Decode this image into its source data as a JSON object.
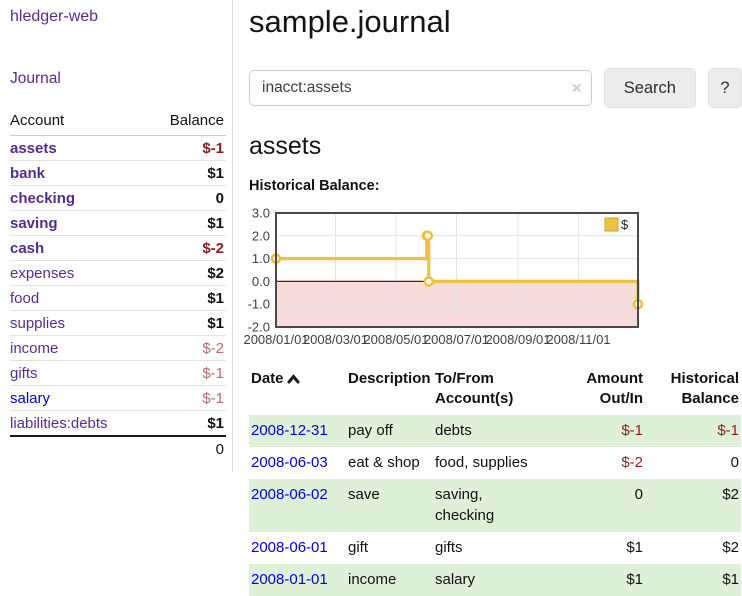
{
  "app": {
    "brand": "hledger-web"
  },
  "sidebar": {
    "journal_link": "Journal",
    "accounts_table": {
      "headers": {
        "account": "Account",
        "balance": "Balance"
      },
      "rows": [
        {
          "name": "assets",
          "indent": 1,
          "bold": true,
          "unvisited": false,
          "balance": "$-1",
          "balance_style": "neg-strong"
        },
        {
          "name": "bank",
          "indent": 2,
          "bold": true,
          "unvisited": false,
          "balance": "$1",
          "balance_style": "normal"
        },
        {
          "name": "checking",
          "indent": 3,
          "bold": true,
          "unvisited": false,
          "balance": "0",
          "balance_style": "normal"
        },
        {
          "name": "saving",
          "indent": 3,
          "bold": true,
          "unvisited": false,
          "balance": "$1",
          "balance_style": "normal"
        },
        {
          "name": "cash",
          "indent": 2,
          "bold": true,
          "unvisited": false,
          "balance": "$-2",
          "balance_style": "neg-strong"
        },
        {
          "name": "expenses",
          "indent": 1,
          "bold": false,
          "unvisited": false,
          "balance": "$2",
          "balance_style": "normal"
        },
        {
          "name": "food",
          "indent": 2,
          "bold": false,
          "unvisited": false,
          "balance": "$1",
          "balance_style": "normal"
        },
        {
          "name": "supplies",
          "indent": 2,
          "bold": false,
          "unvisited": false,
          "balance": "$1",
          "balance_style": "normal"
        },
        {
          "name": "income",
          "indent": 1,
          "bold": false,
          "unvisited": false,
          "balance": "$-2",
          "balance_style": "neg-soft"
        },
        {
          "name": "gifts",
          "indent": 2,
          "bold": false,
          "unvisited": false,
          "balance": "$-1",
          "balance_style": "neg-soft"
        },
        {
          "name": "salary",
          "indent": 2,
          "bold": false,
          "unvisited": true,
          "balance": "$-1",
          "balance_style": "neg-soft"
        },
        {
          "name": "liabilities:debts",
          "indent": 1,
          "bold": false,
          "unvisited": false,
          "balance": "$1",
          "balance_style": "normal"
        }
      ],
      "total": "0"
    }
  },
  "header": {
    "title": "sample.journal"
  },
  "search": {
    "value": "inacct:assets",
    "clear_label": "×",
    "button": "Search",
    "help_button": "?"
  },
  "account_page": {
    "title": "assets",
    "chart_label": "Historical Balance:"
  },
  "chart_data": {
    "type": "line",
    "step": true,
    "title": "Historical Balance",
    "series": [
      {
        "name": "$",
        "points": [
          [
            "2008-01-01",
            1
          ],
          [
            "2008-06-01",
            2
          ],
          [
            "2008-06-02",
            2
          ],
          [
            "2008-06-03",
            0
          ],
          [
            "2008-12-31",
            -1
          ]
        ]
      }
    ],
    "x_range": [
      "2008-01-01",
      "2008-12-31"
    ],
    "ylim": [
      -2,
      3
    ],
    "y_ticks": [
      3,
      2,
      1,
      0,
      -1,
      -2
    ],
    "y_tick_labels": [
      "3.0",
      "2.0",
      "1.0",
      "0.0",
      "-1.0",
      "-2.0"
    ],
    "x_ticks": [
      {
        "date": "2008-01-01",
        "label": "2008/01/01"
      },
      {
        "date": "2008-03-01",
        "label": "2008/03/01"
      },
      {
        "date": "2008-05-01",
        "label": "2008/05/01"
      },
      {
        "date": "2008-07-01",
        "label": "2008/07/01"
      },
      {
        "date": "2008-09-01",
        "label": "2008/09/01"
      },
      {
        "date": "2008-11-01",
        "label": "2008/11/01"
      }
    ],
    "legend": {
      "label": "$",
      "position": "top-right"
    },
    "grid": true,
    "negative_region": {
      "from": -2,
      "to": 0
    }
  },
  "register": {
    "headers": [
      "Date",
      "Description",
      "To/From Account(s)",
      "Amount Out/In",
      "Historical Balance"
    ],
    "rows": [
      {
        "date": "2008-12-31",
        "description": "pay off",
        "accounts": "debts",
        "amount": "$-1",
        "balance": "$-1"
      },
      {
        "date": "2008-06-03",
        "description": "eat & shop",
        "accounts": "food, supplies",
        "amount": "$-2",
        "balance": "0"
      },
      {
        "date": "2008-06-02",
        "description": "save",
        "accounts": "saving, checking",
        "amount": "0",
        "balance": "$2"
      },
      {
        "date": "2008-06-01",
        "description": "gift",
        "accounts": "gifts",
        "amount": "$1",
        "balance": "$2"
      },
      {
        "date": "2008-01-01",
        "description": "income",
        "accounts": "salary",
        "amount": "$1",
        "balance": "$1"
      }
    ]
  },
  "colors": {
    "link-purple": "#552d90",
    "link-blue": "#0000e0",
    "negative-strong": "#8f1d1d",
    "negative-soft": "#ba6b6b",
    "row-green": "#dff0d8",
    "chart-line": "#EDC240",
    "chart-line-edge": "#cda42e",
    "chart-negative-fill": "#f8dcdc",
    "chart-zero-line": "#8b0000",
    "chart-border": "#4a4a4a",
    "chart-grid": "#e4e4e4",
    "chart-text": "#3f3f3f"
  }
}
